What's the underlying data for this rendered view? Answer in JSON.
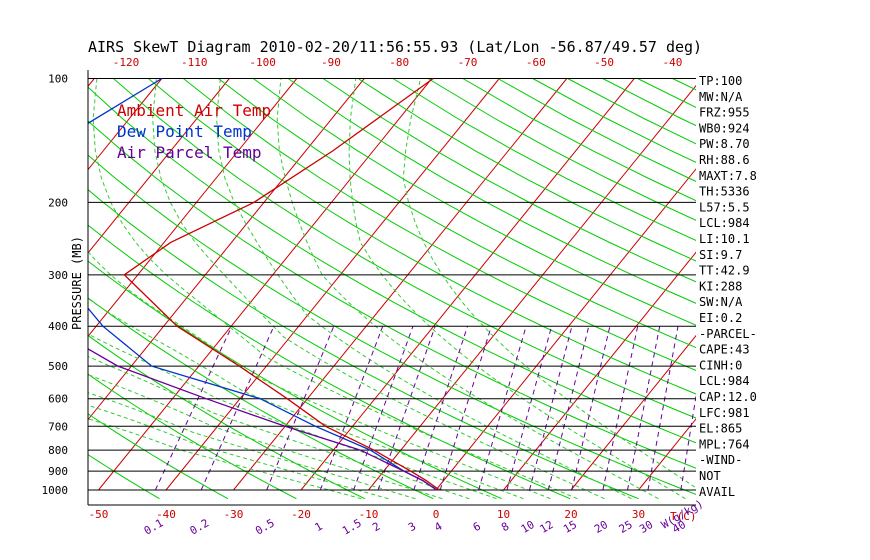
{
  "chart_data": {
    "type": "line",
    "title": "AIRS SkewT Diagram 2010-02-20/11:56:55.93 (Lat/Lon -56.87/49.57 deg)",
    "ylabel": "PRESSURE (MB)",
    "xlabel": "T(C)",
    "mixing_ratio_label": "W(g/kg)",
    "pressure_ticks": [
      100,
      200,
      300,
      400,
      500,
      600,
      700,
      800,
      900,
      1000
    ],
    "bottom_temp_ticks": [
      -50,
      -40,
      -30,
      -20,
      -10,
      0,
      10,
      20,
      30
    ],
    "top_temp_ticks": [
      -120,
      -110,
      -100,
      -90,
      -80,
      -70,
      -60,
      -50,
      -40
    ],
    "mixing_ratio_ticks": [
      "0.1",
      "0.2",
      "0.5",
      "1",
      "1.5",
      "2",
      "3",
      "4",
      "6",
      "8",
      "10",
      "12",
      "15",
      "20",
      "25",
      "30",
      "40"
    ],
    "legend": [
      {
        "name": "Ambient Air Temp",
        "color": "#cc0000"
      },
      {
        "name": "Dew Point Temp",
        "color": "#0033cc"
      },
      {
        "name": "Air Parcel Temp",
        "color": "#660099"
      }
    ],
    "series": [
      {
        "name": "Ambient Air Temp",
        "color": "#cc0000",
        "points": [
          [
            100,
            -49.8
          ],
          [
            150,
            -56
          ],
          [
            200,
            -61.5
          ],
          [
            250,
            -69
          ],
          [
            300,
            -72
          ],
          [
            400,
            -58
          ],
          [
            500,
            -44
          ],
          [
            600,
            -33
          ],
          [
            700,
            -24
          ],
          [
            800,
            -14
          ],
          [
            900,
            -6
          ],
          [
            950,
            -2.5
          ],
          [
            1000,
            0.5
          ]
        ]
      },
      {
        "name": "Dew Point Temp",
        "color": "#0033cc",
        "points": [
          [
            100,
            -90
          ],
          [
            150,
            -99
          ],
          [
            200,
            -96.5
          ],
          [
            250,
            -90
          ],
          [
            300,
            -81.5
          ],
          [
            400,
            -69
          ],
          [
            500,
            -57
          ],
          [
            600,
            -37
          ],
          [
            700,
            -25.5
          ],
          [
            800,
            -14.5
          ],
          [
            900,
            -7
          ],
          [
            950,
            -3
          ],
          [
            1000,
            0.1
          ]
        ]
      },
      {
        "name": "Air Parcel Temp",
        "color": "#660099",
        "points": [
          [
            100,
            -134.5
          ],
          [
            150,
            -120
          ],
          [
            200,
            -110
          ],
          [
            250,
            -100
          ],
          [
            300,
            -92
          ],
          [
            400,
            -77
          ],
          [
            500,
            -62
          ],
          [
            600,
            -45
          ],
          [
            700,
            -30
          ],
          [
            800,
            -16
          ],
          [
            900,
            -7
          ],
          [
            950,
            -3
          ],
          [
            1000,
            0.1
          ]
        ]
      }
    ]
  },
  "indices": [
    "TP:100",
    "MW:N/A",
    "FRZ:955",
    "WB0:924",
    "PW:8.70",
    "RH:88.6",
    "MAXT:7.8",
    "TH:5336",
    "L57:5.5",
    "LCL:984",
    "LI:10.1",
    "SI:9.7",
    "TT:42.9",
    "KI:288",
    "SW:N/A",
    "EI:0.2",
    "-PARCEL-",
    "CAPE:43",
    "CINH:0",
    "LCL:984",
    "CAP:12.0",
    "LFC:981",
    "EL:865",
    "MPL:764",
    "-WIND-",
    "NOT",
    "AVAIL"
  ],
  "colors": {
    "isotherm": "#cc0000",
    "dry_adiabat": "#00cc00",
    "moist_adiabat": "#33cc33",
    "mixing_ratio": "#660099",
    "isobar": "#000000",
    "tick_text": "#cc0000"
  }
}
